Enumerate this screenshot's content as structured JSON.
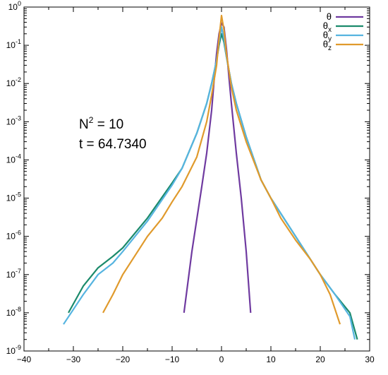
{
  "chart_data": {
    "type": "line",
    "title": "",
    "xlabel": "",
    "ylabel": "",
    "xlim": [
      -40,
      30
    ],
    "ylim": [
      1e-09,
      1
    ],
    "yscale": "log",
    "grid": false,
    "legend_position": "top-right",
    "x_ticks": [
      -40,
      -30,
      -20,
      -10,
      0,
      10,
      20,
      30
    ],
    "x_tick_labels": [
      "−40",
      "−30",
      "−20",
      "−10",
      "0",
      "10",
      "20",
      "30"
    ],
    "y_ticks": [
      1e-09,
      1e-08,
      1e-07,
      1e-06,
      1e-05,
      0.0001,
      0.001,
      0.01,
      0.1,
      1
    ],
    "y_tick_labels": [
      {
        "base": "10",
        "exp": "-9"
      },
      {
        "base": "10",
        "exp": "-8"
      },
      {
        "base": "10",
        "exp": "-7"
      },
      {
        "base": "10",
        "exp": "-6"
      },
      {
        "base": "10",
        "exp": "-5"
      },
      {
        "base": "10",
        "exp": "-4"
      },
      {
        "base": "10",
        "exp": "-3"
      },
      {
        "base": "10",
        "exp": "-2"
      },
      {
        "base": "10",
        "exp": "-1"
      },
      {
        "base": "10",
        "exp": "0"
      }
    ],
    "annotations": {
      "n_label_base": "N",
      "n_label_exp": "2",
      "n_label_rest": " = 10",
      "time_label": "t = 64.7340"
    },
    "series": [
      {
        "name": "θ",
        "name_base": "θ",
        "name_sub": "",
        "color": "#6f3aa0",
        "x": [
          -7.6,
          -6,
          -4,
          -3,
          -2,
          -1.5,
          -1,
          -0.5,
          0,
          0.5,
          1,
          1.5,
          2,
          3,
          4,
          5,
          5.9
        ],
        "y": [
          1e-08,
          4e-07,
          2e-05,
          0.00015,
          0.002,
          0.012,
          0.06,
          0.2,
          0.38,
          0.3,
          0.08,
          0.015,
          0.003,
          0.00015,
          1e-05,
          4e-07,
          1e-08
        ]
      },
      {
        "name": "θx",
        "name_base": "θ",
        "name_sub": "x",
        "color": "#1b8a6b",
        "x": [
          -31,
          -28,
          -25,
          -22,
          -20,
          -15,
          -10,
          -8,
          -5,
          -3,
          -2,
          -1,
          -0.5,
          0,
          0.5,
          1,
          2,
          3,
          5,
          8,
          10,
          15,
          18,
          20,
          23,
          26,
          27.5
        ],
        "y": [
          1e-08,
          5e-08,
          1.5e-07,
          3e-07,
          5e-07,
          3e-06,
          2.5e-05,
          6e-05,
          0.0005,
          0.003,
          0.01,
          0.04,
          0.1,
          0.2,
          0.12,
          0.05,
          0.01,
          0.003,
          0.0004,
          3e-05,
          1e-05,
          1e-06,
          2.5e-07,
          1e-07,
          3e-08,
          1e-08,
          2e-09
        ]
      },
      {
        "name": "θy",
        "name_base": "θ",
        "name_sub": "y",
        "color": "#56b4e0",
        "x": [
          -32,
          -28,
          -25,
          -22,
          -20,
          -15,
          -10,
          -8,
          -5,
          -3,
          -2,
          -1,
          -0.5,
          0,
          0.5,
          1,
          2,
          3,
          5,
          8,
          10,
          15,
          18,
          20,
          23,
          26,
          27
        ],
        "y": [
          5e-09,
          3e-08,
          1e-07,
          2e-07,
          4e-07,
          2.5e-06,
          2.2e-05,
          6e-05,
          0.0005,
          0.003,
          0.01,
          0.04,
          0.12,
          0.3,
          0.15,
          0.05,
          0.01,
          0.003,
          0.0004,
          3e-05,
          1e-05,
          1e-06,
          2.5e-07,
          1e-07,
          3e-08,
          8e-09,
          2e-09
        ]
      },
      {
        "name": "θz",
        "name_base": "θ",
        "name_sub": "z",
        "color": "#e09a2c",
        "x": [
          -24,
          -22,
          -20,
          -18,
          -15,
          -12,
          -10,
          -8,
          -5,
          -3,
          -2,
          -1,
          -0.5,
          0,
          0.5,
          1,
          2,
          3,
          5,
          8,
          10,
          12,
          15,
          18,
          20,
          22,
          24
        ],
        "y": [
          1e-08,
          3e-08,
          1e-07,
          2.5e-07,
          1e-06,
          3e-06,
          8e-06,
          2e-05,
          0.00012,
          0.001,
          0.005,
          0.03,
          0.15,
          0.6,
          0.25,
          0.06,
          0.008,
          0.002,
          0.0003,
          3e-05,
          1e-05,
          3e-06,
          8e-07,
          2.5e-07,
          1e-07,
          3e-08,
          5e-09
        ]
      }
    ]
  }
}
